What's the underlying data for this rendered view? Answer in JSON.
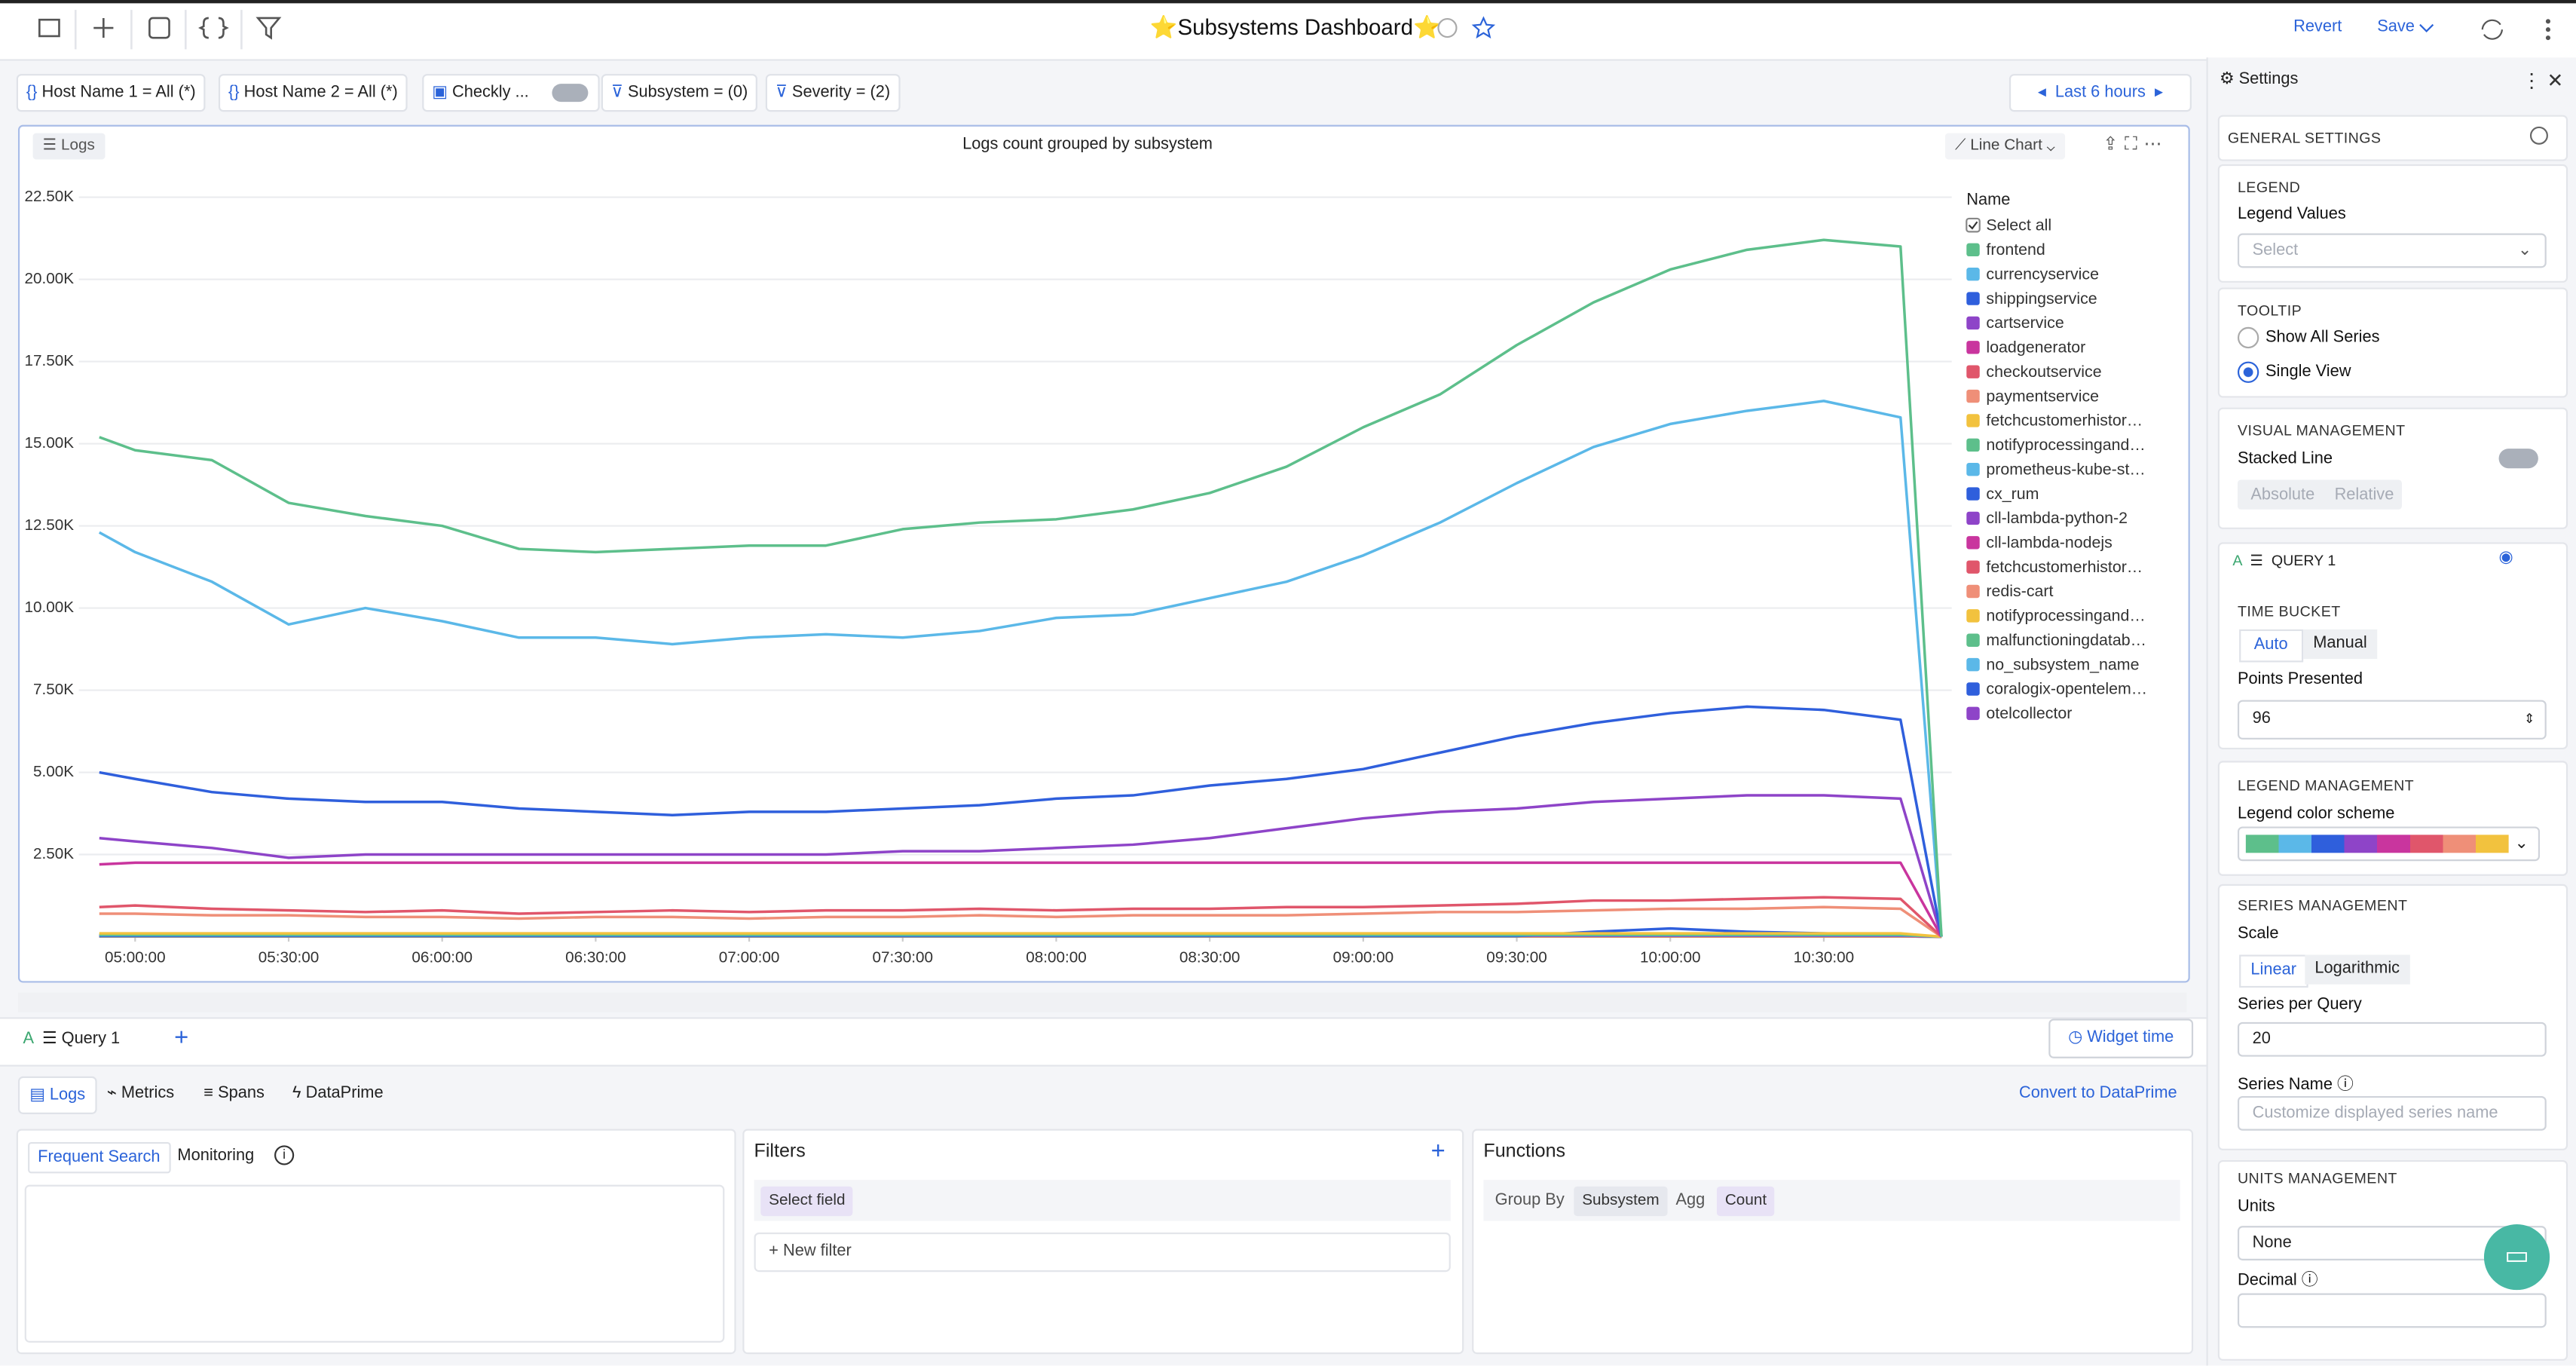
{
  "toolbar": {
    "title": "⭐Subsystems Dashboard⭐",
    "revert": "Revert",
    "save": "Save"
  },
  "filters": [
    "Host Name 1 = All (*)",
    "Host Name 2 = All (*)",
    "Checkly ...",
    "Subsystem = (0)",
    "Severity = (2)"
  ],
  "time_range": "Last 6 hours",
  "widget": {
    "tag": "Logs",
    "chart_type": "Line Chart"
  },
  "chart_data": {
    "type": "line",
    "title": "Logs count grouped by subsystem",
    "legend_title": "Name",
    "select_all": "Select all",
    "x": [
      "04:53:00",
      "05:00:00",
      "05:15:00",
      "05:30:00",
      "05:45:00",
      "06:00:00",
      "06:15:00",
      "06:30:00",
      "06:45:00",
      "07:00:00",
      "07:15:00",
      "07:30:00",
      "07:45:00",
      "08:00:00",
      "08:15:00",
      "08:30:00",
      "08:45:00",
      "09:00:00",
      "09:15:00",
      "09:30:00",
      "09:45:00",
      "10:00:00",
      "10:15:00",
      "10:30:00",
      "10:45:00",
      "10:53:00"
    ],
    "xlim": [
      "04:49:00",
      "10:55:00"
    ],
    "xticks": [
      "05:00:00",
      "05:30:00",
      "06:00:00",
      "06:30:00",
      "07:00:00",
      "07:30:00",
      "08:00:00",
      "08:30:00",
      "09:00:00",
      "09:30:00",
      "10:00:00",
      "10:30:00"
    ],
    "ylim": [
      0,
      23000
    ],
    "yticks": [
      {
        "value": 2500,
        "label": "2.50K"
      },
      {
        "value": 5000,
        "label": "5.00K"
      },
      {
        "value": 7500,
        "label": "7.50K"
      },
      {
        "value": 10000,
        "label": "10.00K"
      },
      {
        "value": 12500,
        "label": "12.50K"
      },
      {
        "value": 15000,
        "label": "15.00K"
      },
      {
        "value": 17500,
        "label": "17.50K"
      },
      {
        "value": 20000,
        "label": "20.00K"
      },
      {
        "value": 22500,
        "label": "22.50K"
      }
    ],
    "grid": true,
    "series": [
      {
        "name": "frontend",
        "color": "#5dbf8b",
        "values": [
          15200,
          14800,
          14500,
          13200,
          12800,
          12500,
          11800,
          11700,
          11800,
          11900,
          11900,
          12400,
          12600,
          12700,
          13000,
          13500,
          14300,
          15500,
          16500,
          18000,
          19300,
          20300,
          20900,
          21200,
          21000,
          0
        ]
      },
      {
        "name": "currencyservice",
        "color": "#5bb8e8",
        "values": [
          12300,
          11700,
          10800,
          9500,
          10000,
          9600,
          9100,
          9100,
          8900,
          9100,
          9200,
          9100,
          9300,
          9700,
          9800,
          10300,
          10800,
          11600,
          12600,
          13800,
          14900,
          15600,
          16000,
          16300,
          15800,
          0
        ]
      },
      {
        "name": "shippingservice",
        "color": "#2f5fdc",
        "values": [
          5000,
          4800,
          4400,
          4200,
          4100,
          4100,
          3900,
          3800,
          3700,
          3800,
          3800,
          3900,
          4000,
          4200,
          4300,
          4600,
          4800,
          5100,
          5600,
          6100,
          6500,
          6800,
          7000,
          6900,
          6600,
          0
        ]
      },
      {
        "name": "cartservice",
        "color": "#8e44c8",
        "values": [
          3000,
          2900,
          2700,
          2400,
          2500,
          2500,
          2500,
          2500,
          2500,
          2500,
          2500,
          2600,
          2600,
          2700,
          2800,
          3000,
          3300,
          3600,
          3800,
          3900,
          4100,
          4200,
          4300,
          4300,
          4200,
          0
        ]
      },
      {
        "name": "loadgenerator",
        "color": "#c9359e",
        "values": [
          2200,
          2250,
          2250,
          2250,
          2250,
          2250,
          2250,
          2250,
          2250,
          2250,
          2250,
          2250,
          2250,
          2250,
          2250,
          2250,
          2250,
          2250,
          2250,
          2250,
          2250,
          2250,
          2250,
          2250,
          2250,
          0
        ]
      },
      {
        "name": "checkoutservice",
        "color": "#e0566b",
        "values": [
          900,
          950,
          850,
          800,
          750,
          800,
          700,
          750,
          800,
          750,
          800,
          800,
          850,
          800,
          850,
          850,
          900,
          900,
          950,
          1000,
          1100,
          1100,
          1150,
          1200,
          1150,
          0
        ]
      },
      {
        "name": "paymentservice",
        "color": "#ef8f78",
        "values": [
          700,
          700,
          650,
          650,
          600,
          600,
          550,
          600,
          600,
          550,
          600,
          600,
          650,
          600,
          650,
          650,
          650,
          700,
          750,
          750,
          800,
          850,
          850,
          900,
          850,
          0
        ]
      },
      {
        "name": "fetchcustomerhistor…",
        "color": "#f2c23e",
        "values": [
          100,
          100,
          100,
          100,
          100,
          100,
          100,
          100,
          100,
          100,
          100,
          100,
          100,
          100,
          100,
          100,
          100,
          100,
          100,
          100,
          100,
          100,
          100,
          100,
          100,
          0
        ]
      },
      {
        "name": "notifyprocessingand…",
        "color": "#5dbf8b",
        "values": [
          60,
          60,
          60,
          60,
          60,
          60,
          60,
          60,
          60,
          60,
          60,
          60,
          60,
          60,
          60,
          60,
          60,
          60,
          60,
          60,
          60,
          60,
          60,
          60,
          60,
          0
        ]
      },
      {
        "name": "prometheus-kube-st…",
        "color": "#5bb8e8",
        "values": [
          50,
          50,
          50,
          50,
          50,
          50,
          50,
          50,
          50,
          50,
          50,
          50,
          50,
          50,
          50,
          50,
          50,
          50,
          50,
          50,
          50,
          50,
          50,
          50,
          50,
          0
        ]
      },
      {
        "name": "cx_rum",
        "color": "#2f5fdc",
        "values": [
          20,
          20,
          20,
          20,
          20,
          20,
          20,
          20,
          20,
          20,
          20,
          20,
          20,
          20,
          20,
          20,
          20,
          20,
          20,
          20,
          150,
          250,
          150,
          100,
          50,
          0
        ]
      },
      {
        "name": "cll-lambda-python-2",
        "color": "#8e44c8",
        "values": [
          30,
          30,
          30,
          30,
          30,
          30,
          30,
          30,
          30,
          30,
          30,
          30,
          30,
          30,
          30,
          30,
          30,
          30,
          30,
          30,
          30,
          30,
          30,
          30,
          30,
          0
        ]
      },
      {
        "name": "cll-lambda-nodejs",
        "color": "#c9359e",
        "values": [
          30,
          30,
          30,
          30,
          30,
          30,
          30,
          30,
          30,
          30,
          30,
          30,
          30,
          30,
          30,
          30,
          30,
          30,
          30,
          30,
          30,
          30,
          30,
          30,
          30,
          0
        ]
      },
      {
        "name": "fetchcustomerhistor…",
        "color": "#e0566b",
        "values": [
          20,
          20,
          20,
          20,
          20,
          20,
          20,
          20,
          20,
          20,
          20,
          20,
          20,
          20,
          20,
          20,
          20,
          20,
          20,
          20,
          20,
          20,
          20,
          20,
          20,
          0
        ]
      },
      {
        "name": "redis-cart",
        "color": "#ef8f78",
        "values": [
          20,
          20,
          20,
          20,
          20,
          20,
          20,
          20,
          20,
          20,
          20,
          20,
          20,
          20,
          20,
          20,
          20,
          20,
          20,
          20,
          20,
          20,
          20,
          20,
          20,
          0
        ]
      },
      {
        "name": "notifyprocessingand…",
        "color": "#f2c23e",
        "values": [
          10,
          10,
          10,
          10,
          10,
          10,
          10,
          10,
          10,
          10,
          10,
          10,
          10,
          10,
          10,
          10,
          10,
          10,
          10,
          10,
          10,
          10,
          10,
          10,
          10,
          0
        ]
      },
      {
        "name": "malfunctioningdatab…",
        "color": "#5dbf8b",
        "values": [
          10,
          10,
          10,
          10,
          10,
          10,
          10,
          10,
          10,
          10,
          10,
          10,
          10,
          10,
          10,
          10,
          10,
          10,
          10,
          10,
          10,
          10,
          10,
          10,
          10,
          0
        ]
      },
      {
        "name": "no_subsystem_name",
        "color": "#5bb8e8",
        "values": [
          10,
          10,
          10,
          10,
          10,
          10,
          10,
          10,
          10,
          10,
          10,
          10,
          10,
          10,
          10,
          10,
          10,
          10,
          10,
          10,
          10,
          10,
          10,
          10,
          10,
          0
        ]
      },
      {
        "name": "coralogix-opentelem…",
        "color": "#2f5fdc",
        "values": [
          10,
          10,
          10,
          10,
          10,
          10,
          10,
          10,
          10,
          10,
          10,
          10,
          10,
          10,
          10,
          10,
          10,
          10,
          10,
          10,
          10,
          10,
          10,
          10,
          10,
          0
        ]
      },
      {
        "name": "otelcollector",
        "color": "#8e44c8",
        "values": [
          10,
          10,
          10,
          10,
          10,
          10,
          10,
          10,
          10,
          10,
          10,
          10,
          10,
          10,
          10,
          10,
          10,
          10,
          10,
          10,
          10,
          10,
          10,
          10,
          10,
          0
        ]
      }
    ]
  },
  "query_tab": "Query 1",
  "widget_time": "Widget time",
  "sources": [
    "Logs",
    "Metrics",
    "Spans",
    "DataPrime"
  ],
  "convert": "Convert to DataPrime",
  "search_tabs": [
    "Frequent Search",
    "Monitoring"
  ],
  "filters_panel": {
    "title": "Filters",
    "select_field": "Select field",
    "new_filter": "New filter"
  },
  "functions": {
    "title": "Functions",
    "group_by": "Group By",
    "subsystem": "Subsystem",
    "agg": "Agg",
    "count": "Count"
  },
  "settings": {
    "title": "Settings",
    "general": "GENERAL SETTINGS",
    "legend": "LEGEND",
    "legend_values": "Legend Values",
    "select": "Select",
    "tooltip": "TOOLTIP",
    "show_all": "Show All Series",
    "single_view": "Single View",
    "visual": "VISUAL MANAGEMENT",
    "stacked_line": "Stacked Line",
    "absolute": "Absolute",
    "relative": "Relative",
    "query": "QUERY 1",
    "time_bucket": "TIME BUCKET",
    "auto": "Auto",
    "manual": "Manual",
    "points_presented": "Points Presented",
    "points": 96,
    "legend_mgmt": "LEGEND MANAGEMENT",
    "color_scheme": "Legend color scheme",
    "series_mgmt": "SERIES MANAGEMENT",
    "scale": "Scale",
    "linear": "Linear",
    "logarithmic": "Logarithmic",
    "series_per_query": "Series per Query",
    "series_count": 20,
    "series_name": "Series Name",
    "series_name_placeholder": "Customize displayed series name",
    "units_mgmt": "UNITS MANAGEMENT",
    "units": "Units",
    "none": "None",
    "decimal": "Decimal"
  }
}
